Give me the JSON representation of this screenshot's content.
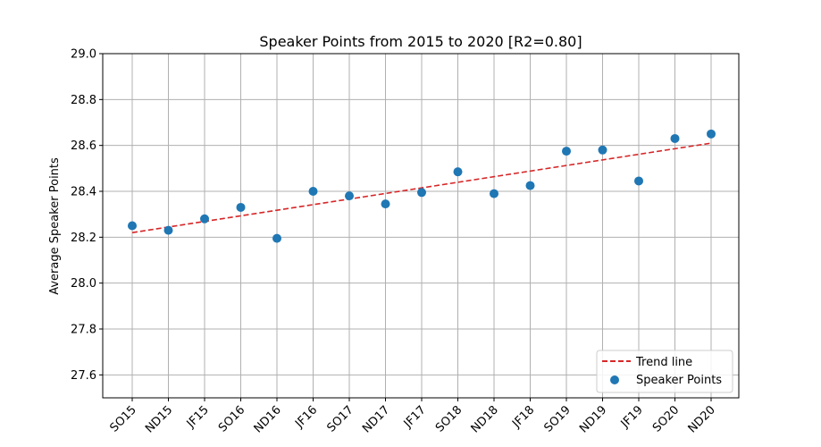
{
  "chart_data": {
    "type": "scatter",
    "title": "Speaker Points from 2015 to 2020 [R2=0.80]",
    "xlabel": "",
    "ylabel": "Average Speaker Points",
    "categories": [
      "SO15",
      "ND15",
      "JF15",
      "SO16",
      "ND16",
      "JF16",
      "SO17",
      "ND17",
      "JF17",
      "SO18",
      "ND18",
      "JF18",
      "SO19",
      "ND19",
      "JF19",
      "SO20",
      "ND20"
    ],
    "ylim": [
      27.5,
      29.0
    ],
    "yticks": [
      27.6,
      27.8,
      28.0,
      28.2,
      28.4,
      28.6,
      28.8,
      29.0
    ],
    "grid": true,
    "legend_position": "bottom-right",
    "series": [
      {
        "name": "Speaker Points",
        "type": "scatter",
        "color": "#1f77b4",
        "values": [
          28.25,
          28.23,
          28.28,
          28.33,
          28.195,
          28.4,
          28.38,
          28.345,
          28.395,
          28.485,
          28.39,
          28.425,
          28.575,
          28.58,
          28.445,
          28.63,
          28.65
        ]
      },
      {
        "name": "Trend line",
        "type": "line",
        "style": "dashed",
        "color": "#d62728",
        "start": 28.22,
        "end": 28.61
      }
    ]
  }
}
